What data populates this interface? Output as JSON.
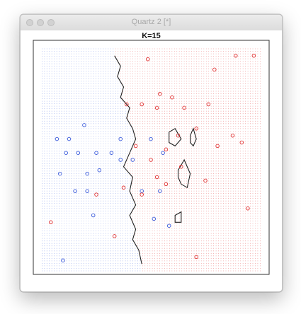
{
  "window": {
    "title": "Quartz 2 [*]",
    "buttons": [
      "close",
      "minimize",
      "zoom"
    ]
  },
  "plot": {
    "title": "K=15",
    "colors": {
      "class_blue": "#3b5bdb",
      "class_red": "#e03131",
      "boundary": "#222222"
    }
  },
  "chart_data": {
    "type": "scatter",
    "title": "K=15",
    "grid": "dense background dot grid colored by predicted class",
    "classes": [
      "blue",
      "red"
    ],
    "series": [
      {
        "name": "",
        "class": "blue",
        "points": [
          [
            -3.0,
            0.6
          ],
          [
            -2.6,
            0.6
          ],
          [
            -2.7,
            0.2
          ],
          [
            -2.3,
            0.2
          ],
          [
            -2.9,
            -0.4
          ],
          [
            -2.0,
            -0.4
          ],
          [
            -2.4,
            -0.9
          ],
          [
            -2.0,
            -0.9
          ],
          [
            -1.7,
            0.2
          ],
          [
            -1.2,
            0.2
          ],
          [
            -0.9,
            0.6
          ],
          [
            -0.9,
            0.0
          ],
          [
            -0.5,
            0.0
          ],
          [
            -0.2,
            -0.9
          ],
          [
            0.1,
            0.6
          ],
          [
            0.4,
            -0.9
          ],
          [
            -2.1,
            1.0
          ],
          [
            -1.6,
            -0.3
          ],
          [
            0.7,
            -1.9
          ],
          [
            -2.8,
            -2.9
          ],
          [
            0.2,
            -1.7
          ],
          [
            0.5,
            0.2
          ],
          [
            -1.8,
            -1.6
          ]
        ]
      },
      {
        "name": "",
        "class": "red",
        "points": [
          [
            -0.7,
            1.6
          ],
          [
            -0.2,
            1.6
          ],
          [
            0.3,
            1.5
          ],
          [
            0.8,
            1.8
          ],
          [
            1.2,
            1.5
          ],
          [
            2.0,
            1.6
          ],
          [
            0.4,
            1.9
          ],
          [
            -0.4,
            0.4
          ],
          [
            0.1,
            0.0
          ],
          [
            0.6,
            0.3
          ],
          [
            1.0,
            0.7
          ],
          [
            1.6,
            0.9
          ],
          [
            2.3,
            0.4
          ],
          [
            2.8,
            0.7
          ],
          [
            3.1,
            0.5
          ],
          [
            0.3,
            -0.5
          ],
          [
            -0.2,
            -1.0
          ],
          [
            0.6,
            -0.7
          ],
          [
            1.1,
            -0.2
          ],
          [
            1.9,
            -0.6
          ],
          [
            3.3,
            -1.4
          ],
          [
            1.6,
            -2.8
          ],
          [
            -1.1,
            -2.2
          ],
          [
            -3.2,
            -1.8
          ],
          [
            2.9,
            3.0
          ],
          [
            3.5,
            3.0
          ],
          [
            2.2,
            2.6
          ],
          [
            0.0,
            2.9
          ],
          [
            -1.7,
            -1.0
          ],
          [
            -0.8,
            -0.8
          ]
        ]
      }
    ],
    "boundary": [
      [
        -1.1,
        3.0
      ],
      [
        -0.9,
        2.7
      ],
      [
        -1.0,
        2.4
      ],
      [
        -0.8,
        2.1
      ],
      [
        -0.9,
        1.8
      ],
      [
        -0.6,
        1.5
      ],
      [
        -0.7,
        1.2
      ],
      [
        -0.5,
        0.9
      ],
      [
        -0.4,
        0.6
      ],
      [
        -0.6,
        0.2
      ],
      [
        -0.8,
        -0.2
      ],
      [
        -0.5,
        -0.5
      ],
      [
        -0.6,
        -0.9
      ],
      [
        -0.4,
        -1.3
      ],
      [
        -0.6,
        -1.6
      ],
      [
        -0.4,
        -2.0
      ],
      [
        -0.5,
        -2.3
      ],
      [
        -0.3,
        -2.6
      ],
      [
        -0.2,
        -3.0
      ]
    ],
    "islands": [
      [
        [
          0.7,
          0.8
        ],
        [
          0.9,
          0.9
        ],
        [
          1.1,
          0.6
        ],
        [
          0.9,
          0.4
        ],
        [
          0.7,
          0.5
        ]
      ],
      [
        [
          1.4,
          0.7
        ],
        [
          1.5,
          0.9
        ],
        [
          1.6,
          0.6
        ],
        [
          1.5,
          0.4
        ],
        [
          1.4,
          0.5
        ]
      ],
      [
        [
          1.0,
          -0.3
        ],
        [
          1.2,
          0.0
        ],
        [
          1.4,
          -0.4
        ],
        [
          1.3,
          -0.8
        ],
        [
          1.1,
          -0.7
        ],
        [
          1.0,
          -0.5
        ]
      ],
      [
        [
          0.9,
          -1.6
        ],
        [
          1.1,
          -1.5
        ],
        [
          1.1,
          -1.8
        ],
        [
          0.9,
          -1.8
        ]
      ]
    ],
    "xlim": [
      -3.5,
      3.7
    ],
    "ylim": [
      -3.2,
      3.2
    ],
    "legend": "none",
    "xlabel": "",
    "ylabel": ""
  }
}
